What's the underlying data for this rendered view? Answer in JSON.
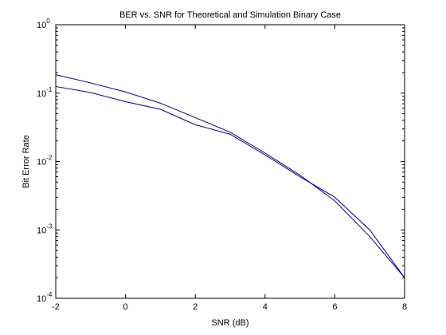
{
  "chart_data": {
    "type": "line",
    "title": "BER vs. SNR for Theoretical and Simulation Binary Case",
    "xlabel": "SNR (dB)",
    "ylabel": "Bit Error Rate",
    "xlim": [
      -2,
      8
    ],
    "ylim": [
      0.0001,
      1
    ],
    "yscale": "log",
    "grid": false,
    "x_ticks": [
      {
        "value": -2,
        "label": "-2"
      },
      {
        "value": 0,
        "label": "0"
      },
      {
        "value": 2,
        "label": "2"
      },
      {
        "value": 4,
        "label": "4"
      },
      {
        "value": 6,
        "label": "6"
      },
      {
        "value": 8,
        "label": "8"
      }
    ],
    "y_ticks": [
      {
        "value": 1,
        "base": "10",
        "exp": "0"
      },
      {
        "value": 0.1,
        "base": "10",
        "exp": "-1"
      },
      {
        "value": 0.01,
        "base": "10",
        "exp": "-2"
      },
      {
        "value": 0.001,
        "base": "10",
        "exp": "-3"
      },
      {
        "value": 0.0001,
        "base": "10",
        "exp": "-4"
      }
    ],
    "series": [
      {
        "color": "#00008b",
        "x": [
          -2,
          -1,
          0,
          1,
          2,
          3,
          4,
          5,
          6,
          7,
          8
        ],
        "y": [
          0.186,
          0.141,
          0.104,
          0.0713,
          0.0439,
          0.0268,
          0.0133,
          0.00633,
          0.00266,
          0.0008,
          0.0002
        ]
      },
      {
        "color": "#00008b",
        "x": [
          -2,
          -1,
          0,
          1,
          2,
          3,
          4,
          5,
          6,
          7,
          8
        ],
        "y": [
          0.125,
          0.102,
          0.075,
          0.058,
          0.0345,
          0.025,
          0.0125,
          0.006,
          0.003,
          0.001,
          0.0002
        ]
      }
    ]
  }
}
